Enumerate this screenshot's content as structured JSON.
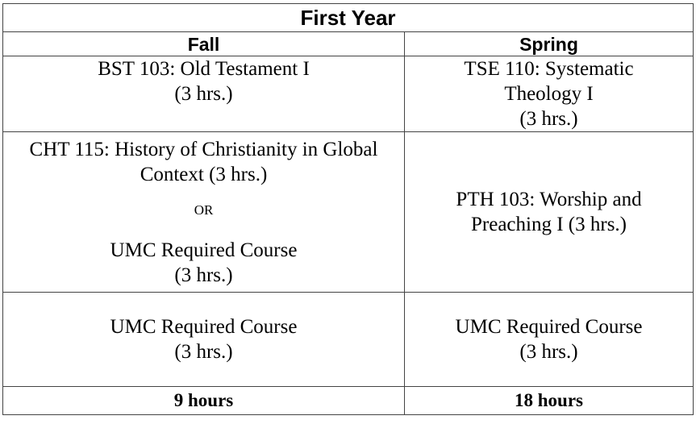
{
  "table": {
    "title": "First Year",
    "columns": [
      "Fall",
      "Spring"
    ],
    "rows": [
      {
        "fall": {
          "lines": [
            "BST 103: Old Testament I",
            "(3 hrs.)"
          ]
        },
        "spring": {
          "lines": [
            "TSE 110: Systematic",
            "Theology I",
            "(3 hrs.)"
          ]
        }
      },
      {
        "fall": {
          "option_a": [
            "CHT 115: History of Christianity in Global",
            "Context (3 hrs.)"
          ],
          "separator": "OR",
          "option_b": [
            "UMC Required Course",
            "(3 hrs.)"
          ]
        },
        "spring": {
          "lines": [
            "PTH 103: Worship and",
            "Preaching I (3 hrs.)"
          ]
        }
      },
      {
        "fall": {
          "lines": [
            "UMC Required Course",
            "(3 hrs.)"
          ]
        },
        "spring": {
          "lines": [
            "UMC Required Course",
            "(3 hrs.)"
          ]
        }
      }
    ],
    "totals": {
      "fall": "9 hours",
      "spring": "18 hours"
    }
  }
}
